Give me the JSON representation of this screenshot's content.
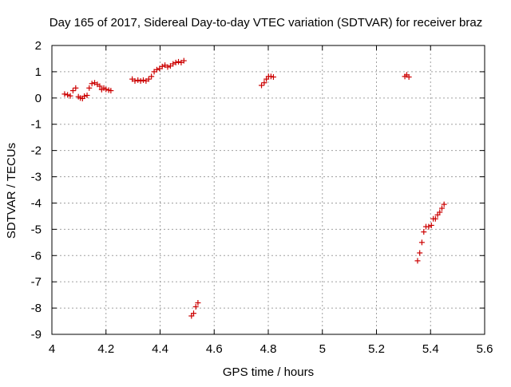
{
  "chart_data": {
    "type": "scatter",
    "title": "Day 165 of 2017, Sidereal Day-to-day VTEC variation (SDTVAR) for receiver braz",
    "xlabel": "GPS time / hours",
    "ylabel": "SDTVAR / TECUs",
    "xlim": [
      4,
      5.6
    ],
    "ylim": [
      -9,
      2
    ],
    "xticks": [
      4,
      4.2,
      4.4,
      4.6,
      4.8,
      5,
      5.2,
      5.4,
      5.6
    ],
    "xtick_labels": [
      "4",
      "4.2",
      "4.4",
      "4.6",
      "4.8",
      "5",
      "5.2",
      "5.4",
      "5.6"
    ],
    "yticks": [
      2,
      1,
      0,
      -1,
      -2,
      -3,
      -4,
      -5,
      -6,
      -7,
      -8,
      -9
    ],
    "ytick_labels": [
      "2",
      "1",
      "0",
      "-1",
      "-2",
      "-3",
      "-4",
      "-5",
      "-6",
      "-7",
      "-8",
      "-9"
    ],
    "grid": true,
    "marker": "+",
    "color": "#cc0000",
    "series": [
      {
        "name": "SDTVAR",
        "points": [
          [
            4.047,
            0.15
          ],
          [
            4.058,
            0.12
          ],
          [
            4.068,
            0.08
          ],
          [
            4.078,
            0.28
          ],
          [
            4.088,
            0.38
          ],
          [
            4.098,
            0.05
          ],
          [
            4.105,
            0.0
          ],
          [
            4.113,
            -0.02
          ],
          [
            4.12,
            0.07
          ],
          [
            4.13,
            0.1
          ],
          [
            4.138,
            0.38
          ],
          [
            4.148,
            0.55
          ],
          [
            4.158,
            0.58
          ],
          [
            4.168,
            0.52
          ],
          [
            4.177,
            0.45
          ],
          [
            4.184,
            0.32
          ],
          [
            4.192,
            0.38
          ],
          [
            4.2,
            0.33
          ],
          [
            4.21,
            0.3
          ],
          [
            4.218,
            0.28
          ],
          [
            4.297,
            0.72
          ],
          [
            4.307,
            0.65
          ],
          [
            4.318,
            0.68
          ],
          [
            4.328,
            0.65
          ],
          [
            4.338,
            0.68
          ],
          [
            4.348,
            0.65
          ],
          [
            4.358,
            0.72
          ],
          [
            4.368,
            0.82
          ],
          [
            4.378,
            1.0
          ],
          [
            4.388,
            1.08
          ],
          [
            4.398,
            1.12
          ],
          [
            4.408,
            1.2
          ],
          [
            4.418,
            1.25
          ],
          [
            4.428,
            1.18
          ],
          [
            4.438,
            1.22
          ],
          [
            4.448,
            1.3
          ],
          [
            4.458,
            1.35
          ],
          [
            4.468,
            1.38
          ],
          [
            4.478,
            1.35
          ],
          [
            4.488,
            1.42
          ],
          [
            4.516,
            -8.3
          ],
          [
            4.524,
            -8.2
          ],
          [
            4.532,
            -7.95
          ],
          [
            4.54,
            -7.8
          ],
          [
            4.775,
            0.48
          ],
          [
            4.785,
            0.58
          ],
          [
            4.793,
            0.72
          ],
          [
            4.801,
            0.82
          ],
          [
            4.81,
            0.82
          ],
          [
            4.819,
            0.8
          ],
          [
            5.305,
            0.82
          ],
          [
            5.312,
            0.88
          ],
          [
            5.32,
            0.8
          ],
          [
            5.352,
            -6.2
          ],
          [
            5.36,
            -5.9
          ],
          [
            5.368,
            -5.5
          ],
          [
            5.375,
            -5.1
          ],
          [
            5.383,
            -4.9
          ],
          [
            5.393,
            -4.9
          ],
          [
            5.403,
            -4.85
          ],
          [
            5.41,
            -4.6
          ],
          [
            5.418,
            -4.6
          ],
          [
            5.426,
            -4.45
          ],
          [
            5.434,
            -4.35
          ],
          [
            5.442,
            -4.2
          ],
          [
            5.45,
            -4.05
          ]
        ]
      }
    ]
  }
}
